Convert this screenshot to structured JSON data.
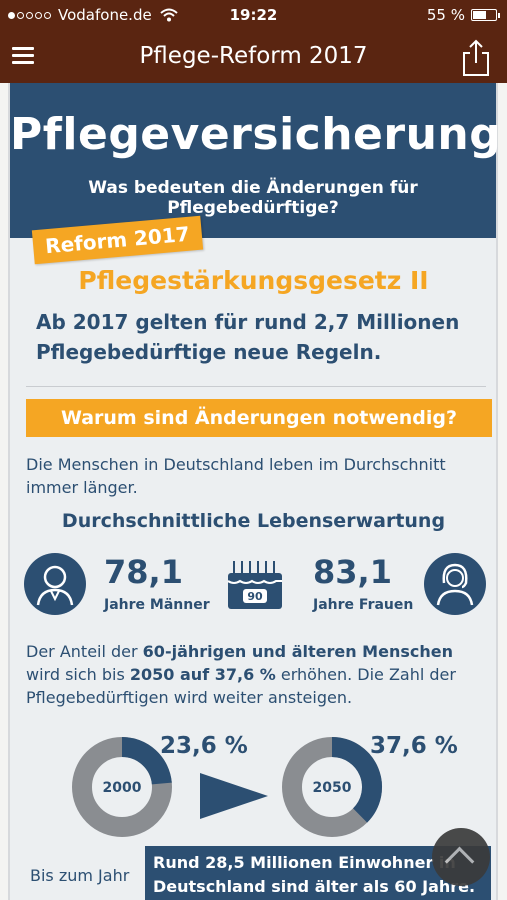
{
  "status": {
    "carrier": "Vodafone.de",
    "time": "19:22",
    "battery": "55 %"
  },
  "nav": {
    "title": "Pflege-Reform 2017"
  },
  "header": {
    "title": "Pflegeversicherung",
    "subtitle": "Was bedeuten die Änderungen für Pflegebedürftige?"
  },
  "reform_badge": "Reform 2017",
  "gesetz": "Pflegestärkungsgesetz II",
  "intro": "Ab 2017 gelten für rund 2,7 Millionen Pflegebedürftige neue Regeln.",
  "warum": "Warum sind Änderungen notwendig?",
  "p1": "Die Menschen in Deutschland leben im Durchschnitt immer länger.",
  "life": {
    "heading": "Durchschnittliche Lebenserwartung",
    "men_value": "78,1",
    "men_label": "Jahre Männer",
    "women_value": "83,1",
    "women_label": "Jahre Frauen",
    "cake_number": "90"
  },
  "p2": {
    "a": "Der Anteil der ",
    "b": "60-jährigen und älteren Menschen",
    "c": " wird sich bis ",
    "d": "2050 auf 37,6 %",
    "e": " erhöhen. Die Zahl der Pflegebedürftigen wird weiter ansteigen."
  },
  "donut1": {
    "year": "2000",
    "pct_label": "23,6 %",
    "value": 23.6
  },
  "donut2": {
    "year": "2050",
    "pct_label": "37,6 %",
    "value": 37.6
  },
  "bis": "Bis zum Jahr",
  "banner": "Rund 28,5 Millionen Einwohner in Deutschland sind älter als 60 Jahre.",
  "colors": {
    "brand": "#5a2511",
    "navy": "#2c4f72",
    "orange": "#f5a623",
    "gray": "#8a8d91"
  },
  "icons": [
    "hamburger-icon",
    "share-icon",
    "wifi-icon",
    "battery-icon",
    "man-avatar-icon",
    "woman-avatar-icon",
    "birthday-cake-icon",
    "scroll-top-icon"
  ]
}
